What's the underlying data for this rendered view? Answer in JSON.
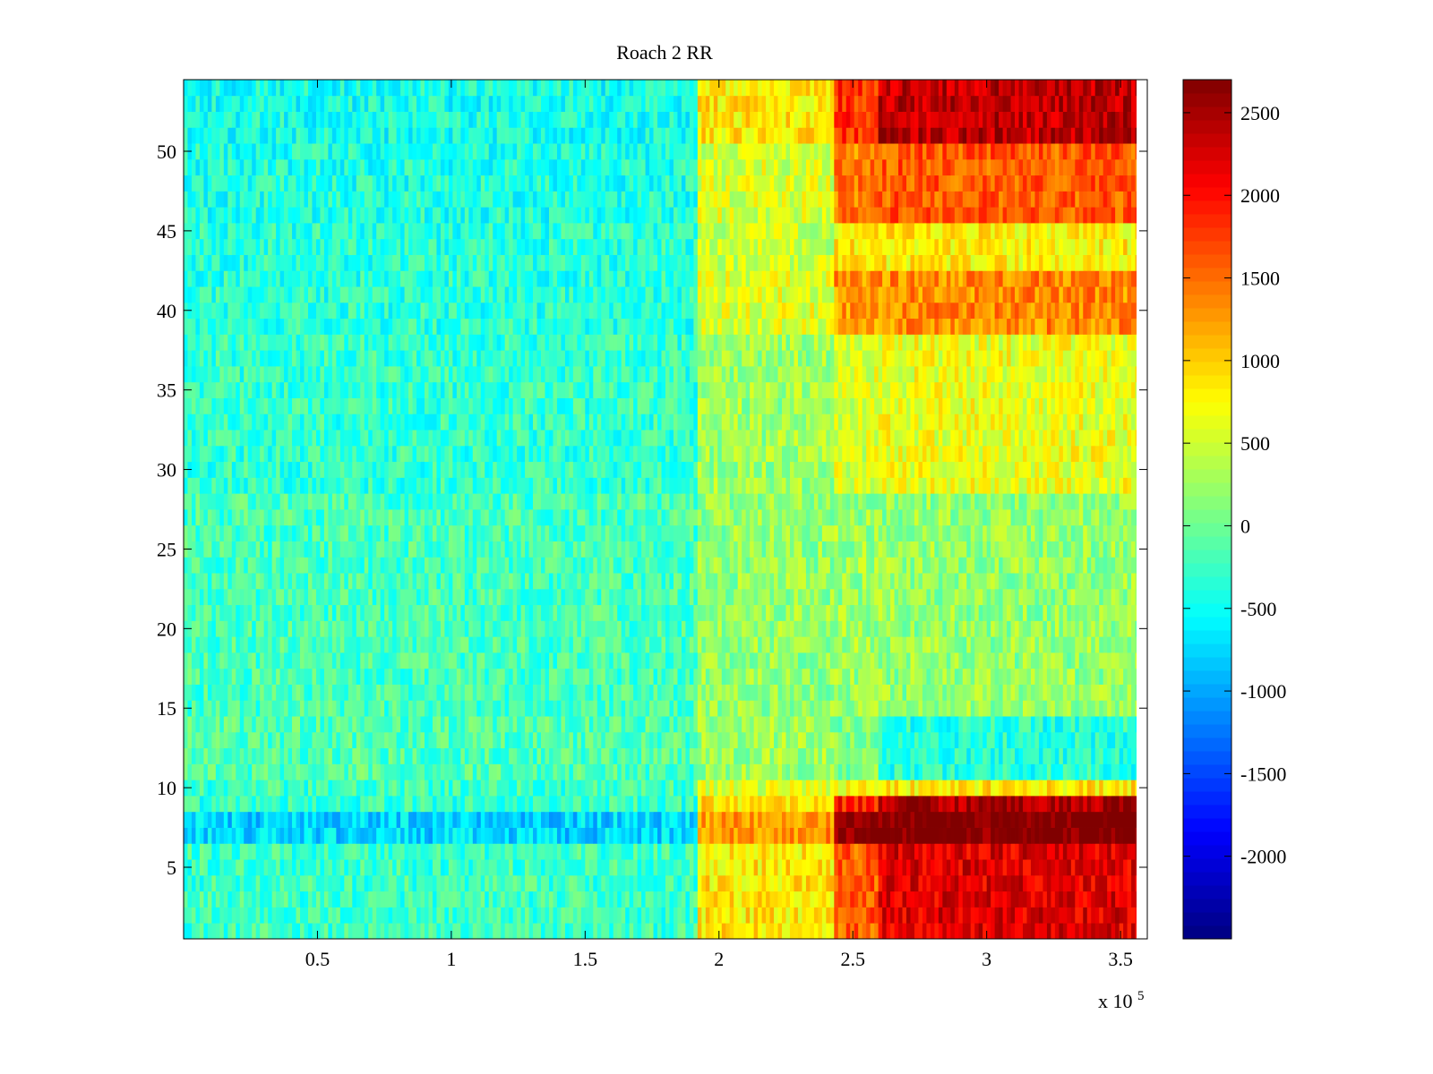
{
  "chart_data": {
    "type": "heatmap",
    "title": "Roach 2 RR",
    "xlabel": "",
    "ylabel": "",
    "x_multiplier_label": "x 10",
    "x_multiplier_exponent": "5",
    "xlim": [
      0,
      360000
    ],
    "ylim": [
      0.5,
      54.5
    ],
    "x_ticks": [
      {
        "value": 0.5,
        "label": "0.5"
      },
      {
        "value": 1,
        "label": "1"
      },
      {
        "value": 1.5,
        "label": "1.5"
      },
      {
        "value": 2,
        "label": "2"
      },
      {
        "value": 2.5,
        "label": "2.5"
      },
      {
        "value": 3,
        "label": "3"
      },
      {
        "value": 3.5,
        "label": "3.5"
      }
    ],
    "y_ticks": [
      {
        "value": 5,
        "label": "5"
      },
      {
        "value": 10,
        "label": "10"
      },
      {
        "value": 15,
        "label": "15"
      },
      {
        "value": 20,
        "label": "20"
      },
      {
        "value": 25,
        "label": "25"
      },
      {
        "value": 30,
        "label": "30"
      },
      {
        "value": 35,
        "label": "35"
      },
      {
        "value": 40,
        "label": "40"
      },
      {
        "value": 45,
        "label": "45"
      },
      {
        "value": 50,
        "label": "50"
      }
    ],
    "colorbar": {
      "colormap": "jet",
      "range": [
        -2500,
        2700
      ],
      "ticks": [
        {
          "value": 2500,
          "label": "2500"
        },
        {
          "value": 2000,
          "label": "2000"
        },
        {
          "value": 1500,
          "label": "1500"
        },
        {
          "value": 1000,
          "label": "1000"
        },
        {
          "value": 500,
          "label": "500"
        },
        {
          "value": 0,
          "label": "0"
        },
        {
          "value": -500,
          "label": "-500"
        },
        {
          "value": -1000,
          "label": "-1000"
        },
        {
          "value": -1500,
          "label": "-1500"
        },
        {
          "value": -2000,
          "label": "-2000"
        }
      ]
    },
    "rows": 54,
    "x_extent_data": [
      0,
      356000
    ],
    "segments_x": [
      0,
      192000,
      243000,
      259000,
      356000
    ],
    "row_levels": [
      {
        "rows": [
          1,
          6
        ],
        "values": [
          -250,
          850,
          1600,
          2200
        ]
      },
      {
        "rows": [
          7,
          8
        ],
        "values": [
          -750,
          1300,
          2650,
          2750
        ]
      },
      {
        "rows": [
          9,
          9
        ],
        "values": [
          -300,
          900,
          1900,
          2500
        ]
      },
      {
        "rows": [
          10,
          10
        ],
        "values": [
          -250,
          600,
          800,
          850
        ]
      },
      {
        "rows": [
          11,
          14
        ],
        "values": [
          -150,
          250,
          100,
          -350
        ]
      },
      {
        "rows": [
          15,
          28
        ],
        "values": [
          -200,
          200,
          250,
          200
        ]
      },
      {
        "rows": [
          29,
          38
        ],
        "values": [
          -300,
          250,
          550,
          650
        ]
      },
      {
        "rows": [
          39,
          42
        ],
        "values": [
          -350,
          600,
          1300,
          1350
        ]
      },
      {
        "rows": [
          43,
          45
        ],
        "values": [
          -350,
          450,
          800,
          800
        ]
      },
      {
        "rows": [
          46,
          50
        ],
        "values": [
          -400,
          550,
          1400,
          1600
        ]
      },
      {
        "rows": [
          51,
          54
        ],
        "values": [
          -450,
          850,
          1800,
          2400
        ]
      }
    ],
    "noise_amplitude": 350
  }
}
